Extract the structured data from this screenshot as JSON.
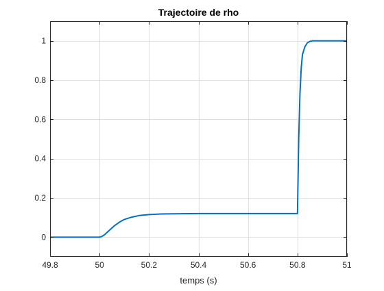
{
  "chart_data": {
    "type": "line",
    "title": "Trajectoire de rho",
    "xlabel": "temps (s)",
    "ylabel": "",
    "xlim": [
      49.8,
      51
    ],
    "ylim": [
      -0.1,
      1.1
    ],
    "xticks": [
      49.8,
      50,
      50.2,
      50.4,
      50.6,
      50.8,
      51
    ],
    "xtick_labels": [
      "49.8",
      "50",
      "50.2",
      "50.4",
      "50.6",
      "50.8",
      "51"
    ],
    "yticks": [
      0,
      0.2,
      0.4,
      0.6,
      0.8,
      1
    ],
    "ytick_labels": [
      "0",
      "0.2",
      "0.4",
      "0.6",
      "0.8",
      "1"
    ],
    "grid": true,
    "legend": "none",
    "colors": {
      "line": "#0072BD",
      "grid": "#dfdfdf",
      "axes": "#262626"
    },
    "series": [
      {
        "x": [
          49.8,
          50.0,
          50.01,
          50.02,
          50.04,
          50.06,
          50.08,
          50.1,
          50.13,
          50.16,
          50.2,
          50.25,
          50.3,
          50.4,
          50.5,
          50.6,
          50.7,
          50.8,
          50.801,
          50.805,
          50.81,
          50.815,
          50.82,
          50.83,
          50.84,
          50.85,
          50.86,
          50.88,
          50.9,
          51.0
        ],
        "y": [
          0,
          0,
          0.004,
          0.012,
          0.035,
          0.058,
          0.076,
          0.09,
          0.102,
          0.11,
          0.115,
          0.118,
          0.119,
          0.12,
          0.12,
          0.12,
          0.12,
          0.12,
          0.2,
          0.5,
          0.73,
          0.86,
          0.93,
          0.97,
          0.99,
          0.997,
          1.0,
          1.0,
          1.0,
          1.0
        ]
      }
    ]
  }
}
